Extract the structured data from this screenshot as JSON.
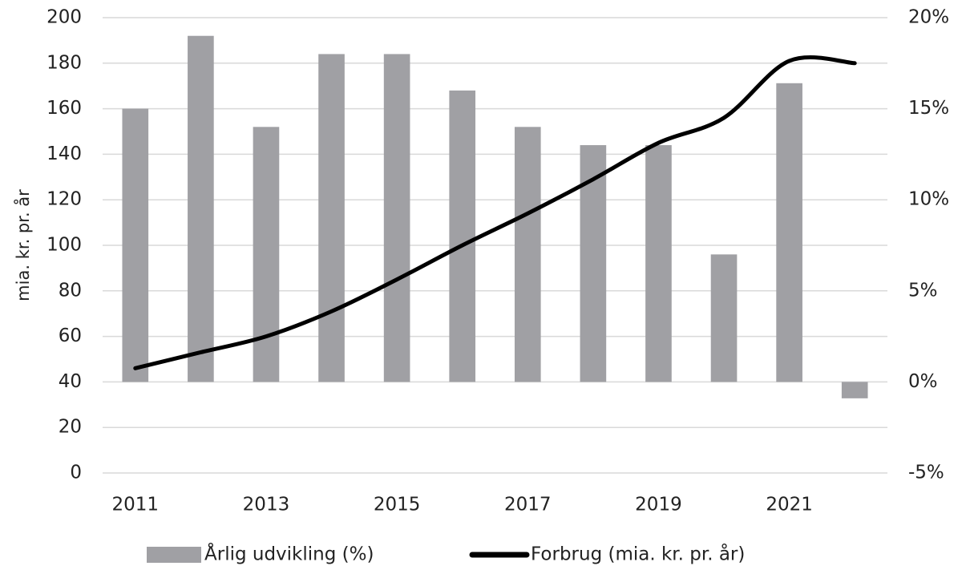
{
  "chart_data": {
    "type": "combo",
    "y_label": "mia. kr. pr. år",
    "categories": [
      "2011",
      null,
      "2013",
      null,
      "2015",
      null,
      "2017",
      null,
      "2019",
      null,
      "2021",
      null
    ],
    "ylim": [
      0,
      200
    ],
    "yticks": [
      0,
      20,
      40,
      60,
      80,
      100,
      120,
      140,
      160,
      180,
      200
    ],
    "y2lim": [
      -5,
      20
    ],
    "y2ticks": [
      {
        "value": -5,
        "label": "-5%"
      },
      {
        "value": 0,
        "label": "0%"
      },
      {
        "value": 5,
        "label": "5%"
      },
      {
        "value": 10,
        "label": "10%"
      },
      {
        "value": 15,
        "label": "15%"
      },
      {
        "value": 20,
        "label": "20%"
      }
    ],
    "grid": true,
    "legend": "bottom",
    "series": [
      {
        "name": "Årlig udvikling (%)",
        "type": "bar",
        "axis": "y2",
        "color": "#a0a0a4",
        "values": [
          15,
          19,
          14,
          18,
          18,
          16,
          14,
          13,
          13,
          7,
          16.4,
          -0.9
        ]
      },
      {
        "name": "Forbrug (mia. kr. pr. år)",
        "type": "line",
        "axis": "y",
        "color": "#000000",
        "values": [
          46,
          53,
          60,
          71,
          85,
          100,
          114,
          129,
          145,
          156,
          181,
          180
        ]
      }
    ]
  }
}
